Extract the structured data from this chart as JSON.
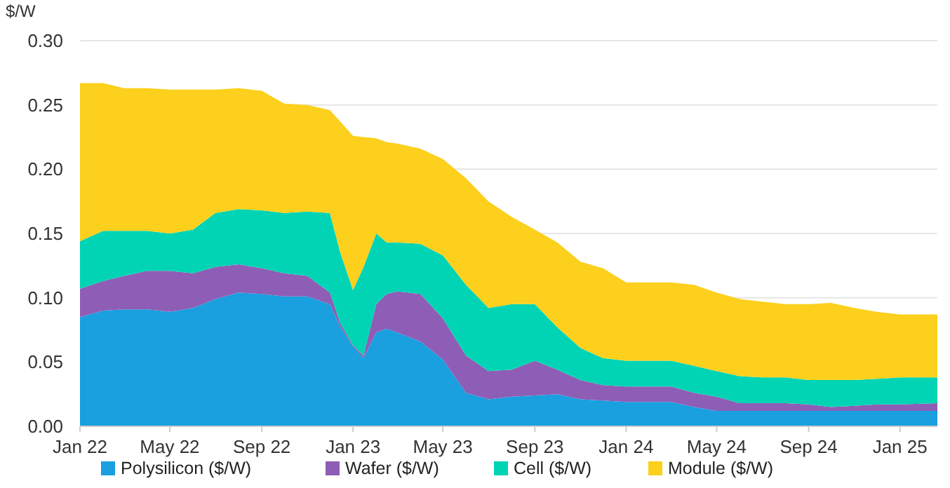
{
  "chart_data": {
    "type": "area",
    "stacked": true,
    "ylabel": "$/W",
    "x": [
      "2022-01-01",
      "2022-02-01",
      "2022-03-01",
      "2022-04-01",
      "2022-05-01",
      "2022-06-01",
      "2022-07-01",
      "2022-08-01",
      "2022-09-01",
      "2022-10-01",
      "2022-11-01",
      "2022-12-01",
      "2022-12-15",
      "2023-01-01",
      "2023-01-15",
      "2023-02-01",
      "2023-02-15",
      "2023-03-01",
      "2023-04-01",
      "2023-05-01",
      "2023-06-01",
      "2023-07-01",
      "2023-08-01",
      "2023-09-01",
      "2023-10-01",
      "2023-11-01",
      "2023-12-01",
      "2024-01-01",
      "2024-02-01",
      "2024-03-01",
      "2024-04-01",
      "2024-05-01",
      "2024-06-01",
      "2024-07-01",
      "2024-08-01",
      "2024-09-01",
      "2024-10-01",
      "2024-11-01",
      "2024-12-01",
      "2025-01-01",
      "2025-02-20"
    ],
    "series": [
      {
        "name": "Polysilicon ($/W)",
        "color": "#1a9fdf",
        "values": [
          0.085,
          0.09,
          0.091,
          0.091,
          0.089,
          0.092,
          0.099,
          0.104,
          0.103,
          0.101,
          0.101,
          0.095,
          0.077,
          0.062,
          0.053,
          0.073,
          0.076,
          0.073,
          0.066,
          0.052,
          0.026,
          0.021,
          0.023,
          0.024,
          0.025,
          0.021,
          0.02,
          0.019,
          0.019,
          0.019,
          0.015,
          0.012,
          0.012,
          0.012,
          0.012,
          0.012,
          0.012,
          0.012,
          0.012,
          0.012,
          0.012
        ]
      },
      {
        "name": "Wafer ($/W)",
        "color": "#8e5db5",
        "values": [
          0.022,
          0.023,
          0.026,
          0.03,
          0.032,
          0.027,
          0.025,
          0.022,
          0.02,
          0.018,
          0.016,
          0.009,
          0.003,
          0.001,
          0.002,
          0.022,
          0.027,
          0.032,
          0.037,
          0.032,
          0.029,
          0.022,
          0.021,
          0.027,
          0.019,
          0.015,
          0.012,
          0.012,
          0.012,
          0.012,
          0.011,
          0.011,
          0.006,
          0.006,
          0.006,
          0.005,
          0.003,
          0.004,
          0.005,
          0.005,
          0.006
        ]
      },
      {
        "name": "Cell ($/W)",
        "color": "#00d4b4",
        "values": [
          0.037,
          0.039,
          0.035,
          0.031,
          0.029,
          0.034,
          0.042,
          0.043,
          0.045,
          0.047,
          0.05,
          0.062,
          0.055,
          0.043,
          0.069,
          0.055,
          0.04,
          0.038,
          0.039,
          0.049,
          0.055,
          0.049,
          0.051,
          0.044,
          0.033,
          0.025,
          0.021,
          0.02,
          0.02,
          0.02,
          0.021,
          0.02,
          0.021,
          0.02,
          0.02,
          0.019,
          0.021,
          0.02,
          0.02,
          0.021,
          0.02
        ]
      },
      {
        "name": "Module ($/W)",
        "color": "#fcd01c",
        "values": [
          0.123,
          0.115,
          0.111,
          0.111,
          0.112,
          0.109,
          0.096,
          0.094,
          0.093,
          0.085,
          0.083,
          0.08,
          0.102,
          0.12,
          0.101,
          0.074,
          0.078,
          0.077,
          0.074,
          0.075,
          0.083,
          0.083,
          0.068,
          0.058,
          0.066,
          0.067,
          0.07,
          0.061,
          0.061,
          0.061,
          0.063,
          0.061,
          0.06,
          0.059,
          0.057,
          0.059,
          0.06,
          0.056,
          0.052,
          0.049,
          0.049
        ]
      }
    ],
    "xlim": [
      "2022-01-01",
      "2025-02-20"
    ],
    "xticks": [
      {
        "value": "2022-01-01",
        "label": "Jan 22"
      },
      {
        "value": "2022-05-01",
        "label": "May 22"
      },
      {
        "value": "2022-09-01",
        "label": "Sep 22"
      },
      {
        "value": "2023-01-01",
        "label": "Jan 23"
      },
      {
        "value": "2023-05-01",
        "label": "May 23"
      },
      {
        "value": "2023-09-01",
        "label": "Sep 23"
      },
      {
        "value": "2024-01-01",
        "label": "Jan 24"
      },
      {
        "value": "2024-05-01",
        "label": "May 24"
      },
      {
        "value": "2024-09-01",
        "label": "Sep 24"
      },
      {
        "value": "2025-01-01",
        "label": "Jan 25"
      }
    ],
    "ylim": [
      0,
      0.3
    ],
    "yticks": [
      {
        "value": 0,
        "label": "0.00"
      },
      {
        "value": 0.05,
        "label": "0.05"
      },
      {
        "value": 0.1,
        "label": "0.10"
      },
      {
        "value": 0.15,
        "label": "0.15"
      },
      {
        "value": 0.2,
        "label": "0.20"
      },
      {
        "value": 0.25,
        "label": "0.25"
      },
      {
        "value": 0.3,
        "label": "0.30"
      }
    ],
    "grid": "y",
    "legend": "bottom"
  }
}
